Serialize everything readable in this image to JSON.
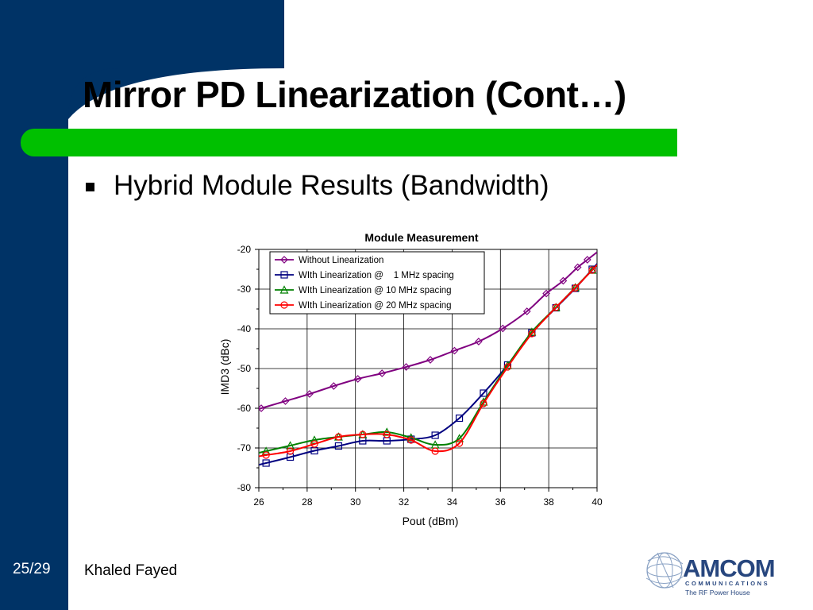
{
  "slide": {
    "title": "Mirror PD Linearization (Cont…)",
    "bullet": "Hybrid Module Results (Bandwidth)",
    "page_number": "25/29",
    "author": "Khaled Fayed",
    "colors": {
      "sidebar": "#003366",
      "accent_bar": "#00c000"
    }
  },
  "logo": {
    "brand": "AMCOM",
    "subtitle": "COMMUNICATIONS",
    "tagline": "The RF Power House",
    "icon": "globe-icon"
  },
  "chart_data": {
    "type": "line",
    "title": "Module Measurement",
    "xlabel": "Pout (dBm)",
    "ylabel": "IMD3 (dBc)",
    "xlim": [
      26,
      40
    ],
    "ylim": [
      -80,
      -20
    ],
    "x_ticks": [
      "26",
      "28",
      "30",
      "32",
      "34",
      "36",
      "38",
      "40"
    ],
    "y_ticks": [
      "-20",
      "-30",
      "-40",
      "-50",
      "-60",
      "-70",
      "-80"
    ],
    "grid": true,
    "legend_position": "top-right",
    "series": [
      {
        "name": "Without Linearization",
        "color": "#800080",
        "marker": "diamond",
        "x": [
          26.1,
          27.1,
          28.1,
          29.1,
          30.1,
          31.1,
          32.1,
          33.1,
          34.1,
          35.1,
          36.1,
          37.1,
          37.9,
          38.6,
          39.2,
          39.6
        ],
        "y": [
          -60,
          -58.2,
          -56.4,
          -54.4,
          -52.6,
          -51.2,
          -49.6,
          -47.8,
          -45.5,
          -43.2,
          -39.9,
          -35.6,
          -31.1,
          -27.9,
          -24.5,
          -22.6
        ]
      },
      {
        "name": "WIth Linearization @    1 MHz spacing",
        "color": "#000080",
        "marker": "square",
        "x": [
          26.3,
          27.3,
          28.3,
          29.3,
          30.3,
          31.3,
          32.3,
          33.3,
          34.3,
          35.3,
          36.3,
          37.3,
          38.3,
          39.1,
          39.8
        ],
        "y": [
          -73.8,
          -72.3,
          -70.7,
          -69.5,
          -68.2,
          -68.2,
          -67.8,
          -66.8,
          -62.5,
          -56.2,
          -49.1,
          -41.0,
          -34.7,
          -29.8,
          -25.0
        ]
      },
      {
        "name": "WIth Linearization @ 10 MHz spacing",
        "color": "#008000",
        "marker": "triangle",
        "x": [
          26.3,
          27.3,
          28.3,
          29.3,
          30.3,
          31.3,
          32.3,
          33.3,
          34.3,
          35.3,
          36.3,
          37.3,
          38.3,
          39.1,
          39.8
        ],
        "y": [
          -70.8,
          -69.4,
          -68.0,
          -67.2,
          -66.6,
          -66.0,
          -67.4,
          -69.2,
          -67.6,
          -58.4,
          -49.2,
          -40.8,
          -34.6,
          -29.6,
          -25.2
        ]
      },
      {
        "name": "WIth Linearization @ 20 MHz spacing",
        "color": "#ff0000",
        "marker": "circle",
        "x": [
          26.3,
          27.3,
          28.3,
          29.3,
          30.3,
          31.3,
          32.3,
          33.3,
          34.3,
          35.3,
          36.3,
          37.3,
          38.3,
          39.1,
          39.8
        ],
        "y": [
          -71.8,
          -70.8,
          -69.0,
          -67.2,
          -66.6,
          -66.6,
          -68.0,
          -70.8,
          -68.8,
          -58.8,
          -49.6,
          -41.2,
          -34.6,
          -29.7,
          -25.2
        ]
      }
    ]
  }
}
